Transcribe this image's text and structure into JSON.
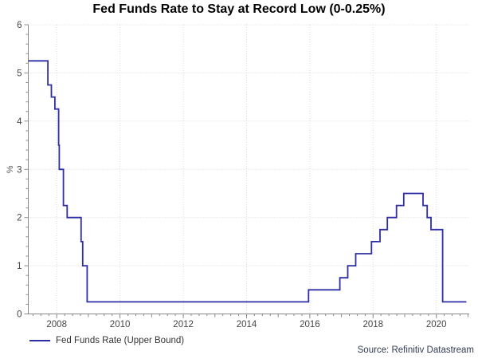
{
  "title": "Fed Funds Rate to Stay at Record Low (0-0.25%)",
  "legend": {
    "label": "Fed Funds Rate (Upper Bound)"
  },
  "source": "Source: Refinitiv Datastream",
  "colors": {
    "line": "#2e2ea6",
    "grid": "#d9d9d9",
    "axis": "#8a8a8a",
    "tick_label": "#454545",
    "axis_unit_label": "#5a5a5a",
    "title": "#000000",
    "legend_text": "#333333",
    "source_text": "#303c52"
  },
  "chart_data": {
    "type": "line",
    "line_style": "step-after",
    "title": "Fed Funds Rate to Stay at Record Low (0-0.25%)",
    "xlabel": "",
    "ylabel": "%",
    "ylim": [
      0,
      6
    ],
    "x_range": [
      2007.1,
      2021.04
    ],
    "x_end": 2020.95,
    "grid": "dotted; horizontal at integer %, vertical at labeled even years",
    "legend_position": "bottom-left",
    "y_major_ticks": [
      0,
      1,
      2,
      3,
      4,
      5,
      6
    ],
    "y_minor_step": 0.2,
    "x_labeled_years": [
      2008,
      2010,
      2012,
      2014,
      2016,
      2018,
      2020
    ],
    "x_minor_step": 0.25,
    "series": [
      {
        "name": "Fed Funds Rate (Upper Bound)",
        "points_format": "[decimal_year, percent] — rate holds until next point (step chart)",
        "points": [
          [
            2007.1,
            5.25
          ],
          [
            2007.72,
            4.75
          ],
          [
            2007.83,
            4.5
          ],
          [
            2007.94,
            4.25
          ],
          [
            2008.06,
            3.5
          ],
          [
            2008.08,
            3.0
          ],
          [
            2008.21,
            2.25
          ],
          [
            2008.33,
            2.0
          ],
          [
            2008.77,
            1.5
          ],
          [
            2008.82,
            1.0
          ],
          [
            2008.96,
            0.25
          ],
          [
            2015.96,
            0.5
          ],
          [
            2016.95,
            0.75
          ],
          [
            2017.2,
            1.0
          ],
          [
            2017.45,
            1.25
          ],
          [
            2017.95,
            1.5
          ],
          [
            2018.22,
            1.75
          ],
          [
            2018.45,
            2.0
          ],
          [
            2018.74,
            2.25
          ],
          [
            2018.97,
            2.5
          ],
          [
            2019.58,
            2.25
          ],
          [
            2019.71,
            2.0
          ],
          [
            2019.83,
            1.75
          ],
          [
            2020.2,
            0.25
          ]
        ]
      }
    ]
  }
}
